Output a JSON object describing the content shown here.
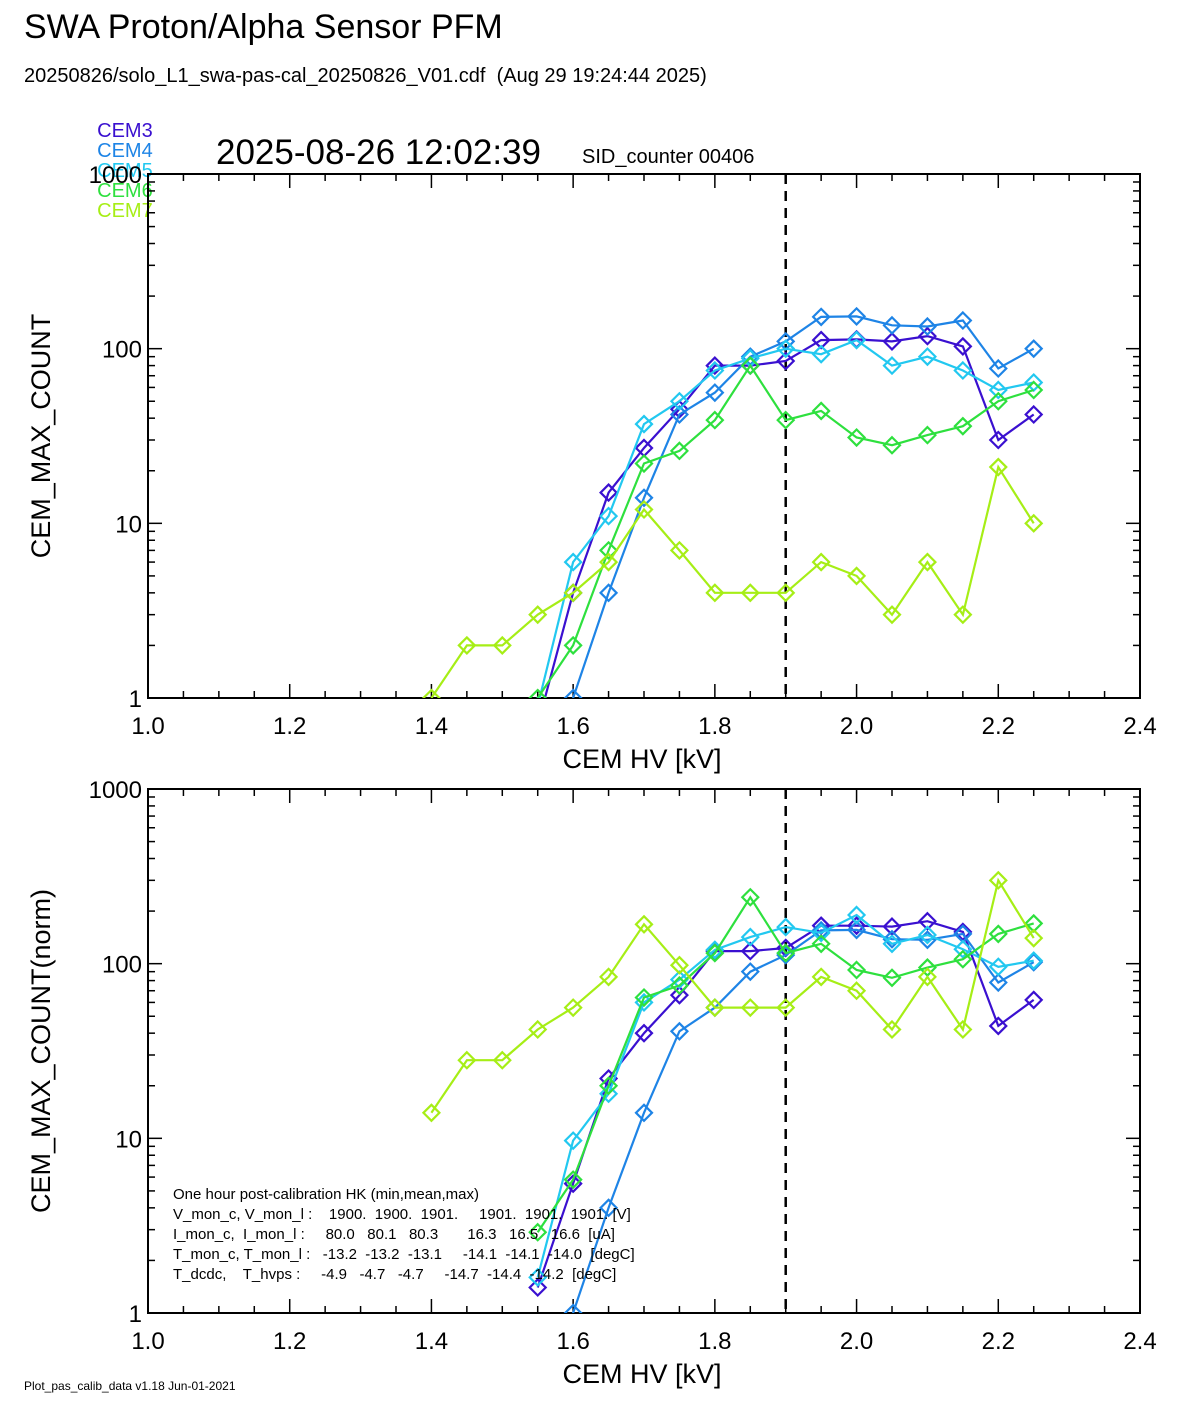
{
  "header": {
    "title": "SWA Proton/Alpha Sensor PFM",
    "subtitle": "20250826/solo_L1_swa-pas-cal_20250826_V01.cdf  (Aug 29 19:24:44 2025)",
    "timestamp": "2025-08-26 12:02:39",
    "sid_label": "SID_counter 00406",
    "footer": "Plot_pas_calib_data v1.18 Jun-01-2021"
  },
  "legend": [
    {
      "name": "CEM3",
      "color": "#3a10d0"
    },
    {
      "name": "CEM4",
      "color": "#1e84e6"
    },
    {
      "name": "CEM5",
      "color": "#22c8f0"
    },
    {
      "name": "CEM6",
      "color": "#2ee03e"
    },
    {
      "name": "CEM7",
      "color": "#a6ee16"
    }
  ],
  "chart_data": [
    {
      "type": "line",
      "scale_y": "log",
      "xlabel": "CEM HV [kV]",
      "ylabel": "CEM_MAX_COUNT",
      "xlim": [
        1.0,
        2.4
      ],
      "ylim": [
        1,
        1000
      ],
      "xticks": [
        "1.0",
        "1.2",
        "1.4",
        "1.6",
        "1.8",
        "2.0",
        "2.2",
        "2.4"
      ],
      "yticks": [
        "1",
        "10",
        "100",
        "1000"
      ],
      "vline_x": 1.9,
      "marker": "diamond",
      "series": [
        {
          "name": "CEM3",
          "color": "#3a10d0",
          "x": [
            1.55,
            1.6,
            1.65,
            1.7,
            1.75,
            1.8,
            1.85,
            1.9,
            1.95,
            2.0,
            2.05,
            2.1,
            2.15,
            2.2,
            2.25
          ],
          "y": [
            0.7,
            4,
            15,
            27,
            45,
            80,
            80,
            85,
            112,
            113,
            110,
            118,
            103,
            30,
            42
          ]
        },
        {
          "name": "CEM4",
          "color": "#1e84e6",
          "x": [
            1.55,
            1.6,
            1.65,
            1.7,
            1.75,
            1.8,
            1.85,
            1.9,
            1.95,
            2.0,
            2.05,
            2.1,
            2.15,
            2.2,
            2.25
          ],
          "y": [
            0.3,
            1,
            4,
            14,
            42,
            56,
            90,
            110,
            152,
            153,
            136,
            134,
            145,
            77,
            100
          ]
        },
        {
          "name": "CEM5",
          "color": "#22c8f0",
          "x": [
            1.55,
            1.6,
            1.65,
            1.7,
            1.75,
            1.8,
            1.85,
            1.9,
            1.95,
            2.0,
            2.05,
            2.1,
            2.15,
            2.2,
            2.25
          ],
          "y": [
            0.9,
            6,
            11,
            37,
            50,
            75,
            88,
            100,
            93,
            112,
            80,
            90,
            75,
            58,
            64
          ]
        },
        {
          "name": "CEM6",
          "color": "#2ee03e",
          "x": [
            1.55,
            1.6,
            1.65,
            1.7,
            1.75,
            1.8,
            1.85,
            1.9,
            1.95,
            2.0,
            2.05,
            2.1,
            2.15,
            2.2,
            2.25
          ],
          "y": [
            1,
            2,
            7,
            22,
            26,
            39,
            80,
            39,
            44,
            31,
            28,
            32,
            36,
            50,
            58
          ]
        },
        {
          "name": "CEM7",
          "color": "#a6ee16",
          "x": [
            1.4,
            1.45,
            1.5,
            1.55,
            1.6,
            1.65,
            1.7,
            1.75,
            1.8,
            1.85,
            1.9,
            1.95,
            2.0,
            2.05,
            2.1,
            2.15,
            2.2,
            2.25
          ],
          "y": [
            1,
            2,
            2,
            3,
            4,
            6,
            12,
            7,
            4,
            4,
            4,
            6,
            5,
            3,
            6,
            3,
            21,
            10
          ]
        }
      ]
    },
    {
      "type": "line",
      "scale_y": "log",
      "xlabel": "CEM HV [kV]",
      "ylabel": "CEM_MAX_COUNT(norm)",
      "xlim": [
        1.0,
        2.4
      ],
      "ylim": [
        1,
        1000
      ],
      "xticks": [
        "1.0",
        "1.2",
        "1.4",
        "1.6",
        "1.8",
        "2.0",
        "2.2",
        "2.4"
      ],
      "yticks": [
        "1",
        "10",
        "100",
        "1000"
      ],
      "vline_x": 1.9,
      "marker": "diamond",
      "series": [
        {
          "name": "CEM3",
          "color": "#3a10d0",
          "x": [
            1.55,
            1.6,
            1.65,
            1.7,
            1.75,
            1.8,
            1.85,
            1.9,
            1.95,
            2.0,
            2.05,
            2.1,
            2.15,
            2.2,
            2.25
          ],
          "y": [
            1.4,
            5.5,
            22,
            40,
            66,
            118,
            118,
            123,
            165,
            165,
            163,
            175,
            152,
            44,
            62
          ]
        },
        {
          "name": "CEM4",
          "color": "#1e84e6",
          "x": [
            1.55,
            1.6,
            1.65,
            1.7,
            1.75,
            1.8,
            1.85,
            1.9,
            1.95,
            2.0,
            2.05,
            2.1,
            2.15,
            2.2,
            2.25
          ],
          "y": [
            0.4,
            1,
            4,
            14,
            41,
            56,
            90,
            112,
            155,
            156,
            138,
            137,
            148,
            78,
            102
          ]
        },
        {
          "name": "CEM5",
          "color": "#22c8f0",
          "x": [
            1.55,
            1.6,
            1.65,
            1.7,
            1.75,
            1.8,
            1.85,
            1.9,
            1.95,
            2.0,
            2.05,
            2.1,
            2.15,
            2.2,
            2.25
          ],
          "y": [
            1.6,
            9.7,
            18,
            60,
            81,
            120,
            142,
            162,
            150,
            190,
            130,
            146,
            121,
            96,
            104
          ]
        },
        {
          "name": "CEM6",
          "color": "#2ee03e",
          "x": [
            1.55,
            1.6,
            1.65,
            1.7,
            1.75,
            1.8,
            1.85,
            1.9,
            1.95,
            2.0,
            2.05,
            2.1,
            2.15,
            2.2,
            2.25
          ],
          "y": [
            2.9,
            5.8,
            20,
            64,
            75,
            115,
            240,
            115,
            130,
            92,
            83,
            95,
            106,
            148,
            170
          ]
        },
        {
          "name": "CEM7",
          "color": "#a6ee16",
          "x": [
            1.4,
            1.45,
            1.5,
            1.55,
            1.6,
            1.65,
            1.7,
            1.75,
            1.8,
            1.85,
            1.9,
            1.95,
            2.0,
            2.05,
            2.1,
            2.15,
            2.2,
            2.25
          ],
          "y": [
            14,
            28,
            28,
            42,
            56,
            84,
            168,
            98,
            56,
            56,
            56,
            84,
            70,
            42,
            84,
            42,
            300,
            140
          ]
        }
      ],
      "annotation": [
        "One hour post-calibration HK (min,mean,max)",
        "V_mon_c, V_mon_l :    1900.  1900.  1901.     1901.  1901.  1901. [V]",
        "I_mon_c,  I_mon_l :     80.0   80.1   80.3       16.3   16.5   16.6  [uA]",
        "T_mon_c, T_mon_l :   -13.2  -13.2  -13.1     -14.1  -14.1  -14.0  [degC]",
        "T_dcdc,    T_hvps :     -4.9   -4.7   -4.7     -14.7  -14.4  -14.2  [degC]"
      ]
    }
  ]
}
